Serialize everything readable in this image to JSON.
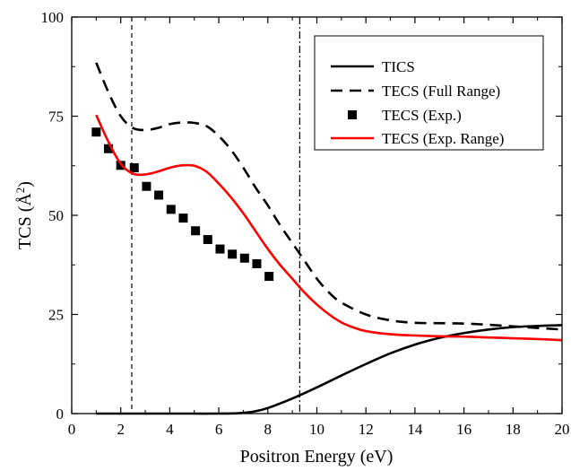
{
  "chart_data": {
    "type": "line",
    "xlabel": "Positron Energy (eV)",
    "ylabel_main": "TCS (Å",
    "ylabel_sup": "2",
    "ylabel_end": ")",
    "xlim": [
      0,
      20
    ],
    "ylim": [
      0,
      100
    ],
    "xticks": [
      0,
      2,
      4,
      6,
      8,
      10,
      12,
      14,
      16,
      18,
      20
    ],
    "yticks": [
      0,
      25,
      50,
      75,
      100
    ],
    "legend_position": "top-right",
    "vlines": [
      {
        "x": 2.45,
        "style": "dashed"
      },
      {
        "x": 9.3,
        "style": "dash-dot"
      }
    ],
    "series": [
      {
        "name": "TICS",
        "style": "solid",
        "color": "#000000",
        "x": [
          1,
          2,
          3,
          4,
          5,
          6,
          6.8,
          7.5,
          8,
          9,
          10,
          11,
          12,
          13,
          14,
          15,
          16,
          17,
          18,
          19,
          20
        ],
        "y": [
          0,
          0,
          0,
          0,
          0,
          0,
          0.1,
          0.6,
          1.4,
          3.8,
          6.6,
          9.6,
          12.5,
          15.2,
          17.4,
          19.1,
          20.3,
          21.2,
          21.8,
          22.1,
          22.3
        ]
      },
      {
        "name": "TECS (Full Range)",
        "style": "dashed",
        "color": "#000000",
        "x": [
          1,
          1.5,
          2,
          2.5,
          3,
          3.5,
          4,
          4.5,
          5,
          5.5,
          6,
          6.5,
          7,
          7.5,
          8,
          8.5,
          9,
          9.5,
          10,
          10.5,
          11,
          12,
          13,
          14,
          15,
          16,
          17,
          18,
          19,
          20
        ],
        "y": [
          88.5,
          81,
          75,
          72,
          71.5,
          72,
          73,
          73.4,
          73.3,
          72.5,
          70,
          66.5,
          62,
          57,
          52.5,
          47.5,
          43,
          38.5,
          34,
          30.5,
          28,
          25,
          23.5,
          22.9,
          22.8,
          22.7,
          22.4,
          22,
          21.6,
          21.2
        ]
      },
      {
        "name": "TECS (Exp.)",
        "style": "square-markers",
        "color": "#000000",
        "x": [
          1,
          1.5,
          2,
          2.55,
          3.05,
          3.55,
          4.05,
          4.55,
          5.05,
          5.55,
          6.05,
          6.55,
          7.05,
          7.55,
          8.05
        ],
        "y": [
          71,
          66.8,
          62.6,
          62,
          57.3,
          55.1,
          51.5,
          49.3,
          46.1,
          43.9,
          41.5,
          40.2,
          39.2,
          37.8,
          34.6
        ]
      },
      {
        "name": "TECS (Exp. Range)",
        "style": "solid",
        "color": "#ff0000",
        "x": [
          1,
          1.5,
          2,
          2.5,
          3,
          3.5,
          4,
          4.5,
          5,
          5.5,
          6,
          6.5,
          7,
          7.5,
          8,
          8.5,
          9,
          9.5,
          10,
          10.5,
          11,
          11.5,
          12,
          13,
          14,
          15,
          16,
          17,
          18,
          19,
          20
        ],
        "y": [
          75.3,
          68.5,
          63,
          60.5,
          60.3,
          61,
          62,
          62.6,
          62.5,
          61,
          58,
          54.5,
          50.5,
          46,
          41.5,
          37.5,
          34,
          30.5,
          27.5,
          25,
          23,
          21.7,
          20.8,
          20,
          19.7,
          19.5,
          19.4,
          19.2,
          19,
          18.8,
          18.5
        ]
      }
    ]
  }
}
